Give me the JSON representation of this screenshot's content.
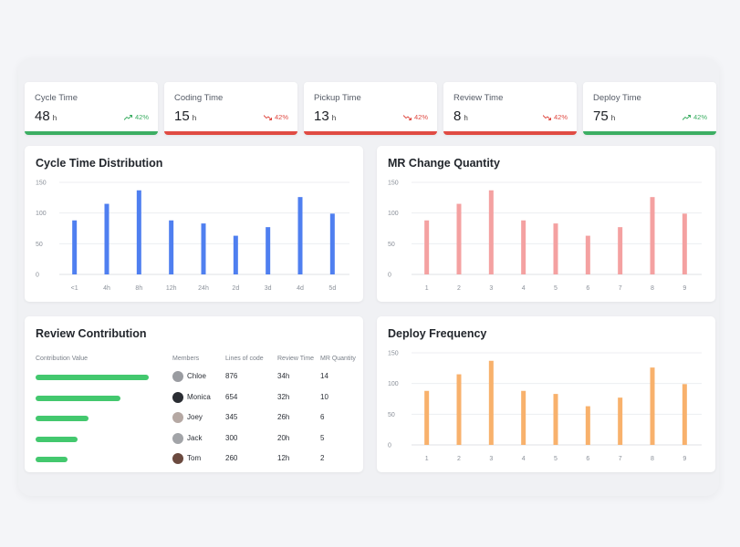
{
  "kpis": [
    {
      "label": "Cycle Time",
      "value": "48",
      "unit": "h",
      "trend": "42%",
      "direction": "up",
      "color": "#3cae63"
    },
    {
      "label": "Coding Time",
      "value": "15",
      "unit": "h",
      "trend": "42%",
      "direction": "down",
      "color": "#e04b43"
    },
    {
      "label": "Pickup Time",
      "value": "13",
      "unit": "h",
      "trend": "42%",
      "direction": "down",
      "color": "#e04b43"
    },
    {
      "label": "Review Time",
      "value": "8",
      "unit": "h",
      "trend": "42%",
      "direction": "down",
      "color": "#e04b43"
    },
    {
      "label": "Deploy Time",
      "value": "75",
      "unit": "h",
      "trend": "42%",
      "direction": "up",
      "color": "#3cae63"
    }
  ],
  "chart_data": [
    {
      "type": "bar",
      "title": "Cycle Time Distribution",
      "categories": [
        "<1",
        "4h",
        "8h",
        "12h",
        "24h",
        "2d",
        "3d",
        "4d",
        "5d"
      ],
      "values": [
        88,
        115,
        137,
        88,
        83,
        63,
        77,
        126,
        99
      ],
      "ylim": [
        0,
        150
      ],
      "yticks": [
        "0",
        "50",
        "100",
        "150"
      ],
      "color": "#4f7ff0",
      "grid": true
    },
    {
      "type": "bar",
      "title": "MR Change Quantity",
      "categories": [
        "1",
        "2",
        "3",
        "4",
        "5",
        "6",
        "7",
        "8",
        "9"
      ],
      "values": [
        88,
        115,
        137,
        88,
        83,
        63,
        77,
        126,
        99
      ],
      "ylim": [
        0,
        150
      ],
      "yticks": [
        "0",
        "50",
        "100",
        "150"
      ],
      "color": "#f4a1a1",
      "grid": true
    },
    {
      "type": "bar",
      "title": "Deploy Frequency",
      "categories": [
        "1",
        "2",
        "3",
        "4",
        "5",
        "6",
        "7",
        "8",
        "9"
      ],
      "values": [
        88,
        115,
        137,
        88,
        83,
        63,
        77,
        126,
        99
      ],
      "ylim": [
        0,
        150
      ],
      "yticks": [
        "0",
        "50",
        "100",
        "150"
      ],
      "color": "#f8b16c",
      "grid": true
    }
  ],
  "review": {
    "title": "Review Contribution",
    "headers": {
      "contribution": "Contribution Value",
      "members": "Members",
      "lines": "Lines of code",
      "review_time": "Review Time",
      "mr_quantity": "MR Quantity"
    },
    "rows": [
      {
        "member": "Chloe",
        "lines": "876",
        "review_time": "34h",
        "mr": "14",
        "contribution": 14
      },
      {
        "member": "Monica",
        "lines": "654",
        "review_time": "32h",
        "mr": "10",
        "contribution": 10.5
      },
      {
        "member": "Joey",
        "lines": "345",
        "review_time": "26h",
        "mr": "6",
        "contribution": 6.5
      },
      {
        "member": "Jack",
        "lines": "300",
        "review_time": "20h",
        "mr": "5",
        "contribution": 5.2
      },
      {
        "member": "Tom",
        "lines": "260",
        "review_time": "12h",
        "mr": "2",
        "contribution": 4
      }
    ]
  }
}
